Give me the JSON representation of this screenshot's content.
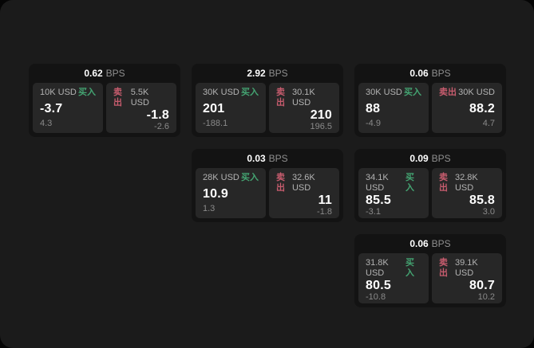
{
  "labels": {
    "buy": "买入",
    "sell": "卖出",
    "bps_unit": "BPS"
  },
  "colors": {
    "app_background": "#1b1b1b",
    "card_background": "#131313",
    "panel_background": "#272727",
    "buy_green": "#44a472",
    "sell_red": "#c75c6e",
    "price_white": "#ffffff",
    "muted_gray": "#8a8a8a"
  },
  "cards": [
    {
      "row": 1,
      "col": 1,
      "bps": "0.62",
      "buy": {
        "size": "10K USD",
        "price": "-3.7",
        "delta": "4.3"
      },
      "sell": {
        "size": "5.5K USD",
        "price": "-1.8",
        "delta": "-2.6"
      }
    },
    {
      "row": 1,
      "col": 2,
      "bps": "2.92",
      "buy": {
        "size": "30K USD",
        "price": "201",
        "delta": "-188.1"
      },
      "sell": {
        "size": "30.1K USD",
        "price": "210",
        "delta": "196.5"
      }
    },
    {
      "row": 1,
      "col": 3,
      "bps": "0.06",
      "buy": {
        "size": "30K USD",
        "price": "88",
        "delta": "-4.9"
      },
      "sell": {
        "size": "30K USD",
        "price": "88.2",
        "delta": "4.7"
      }
    },
    {
      "row": 2,
      "col": 2,
      "bps": "0.03",
      "buy": {
        "size": "28K USD",
        "price": "10.9",
        "delta": "1.3"
      },
      "sell": {
        "size": "32.6K USD",
        "price": "11",
        "delta": "-1.8"
      }
    },
    {
      "row": 2,
      "col": 3,
      "bps": "0.09",
      "buy": {
        "size": "34.1K USD",
        "price": "85.5",
        "delta": "-3.1"
      },
      "sell": {
        "size": "32.8K USD",
        "price": "85.8",
        "delta": "3.0"
      }
    },
    {
      "row": 3,
      "col": 3,
      "bps": "0.06",
      "buy": {
        "size": "31.8K USD",
        "price": "80.5",
        "delta": "-10.8"
      },
      "sell": {
        "size": "39.1K USD",
        "price": "80.7",
        "delta": "10.2"
      }
    }
  ]
}
